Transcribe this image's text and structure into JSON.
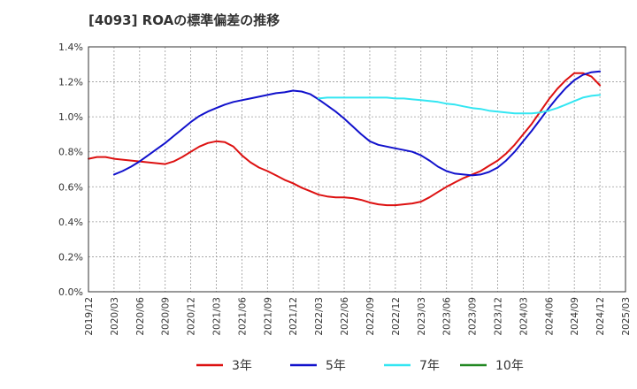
{
  "chart_data": {
    "type": "line",
    "title": "[4093]  ROAの標準偏差の推移",
    "xlabel": "",
    "ylabel": "",
    "ylim": [
      0,
      1.4
    ],
    "y_ticks": [
      "0.0%",
      "0.2%",
      "0.4%",
      "0.6%",
      "0.8%",
      "1.0%",
      "1.2%",
      "1.4%"
    ],
    "x_ticks": [
      "2019/12",
      "2020/03",
      "2020/06",
      "2020/09",
      "2020/12",
      "2021/03",
      "2021/06",
      "2021/09",
      "2021/12",
      "2022/03",
      "2022/06",
      "2022/09",
      "2022/12",
      "2023/03",
      "2023/06",
      "2023/09",
      "2023/12",
      "2024/03",
      "2024/06",
      "2024/09",
      "2024/12",
      "2025/03"
    ],
    "grid": true,
    "legend_position": "bottom",
    "series": [
      {
        "name": "3年",
        "color": "#dd1111",
        "points": [
          [
            "2019/12",
            0.76
          ],
          [
            "2020/01",
            0.77
          ],
          [
            "2020/02",
            0.77
          ],
          [
            "2020/03",
            0.76
          ],
          [
            "2020/04",
            0.755
          ],
          [
            "2020/05",
            0.75
          ],
          [
            "2020/06",
            0.745
          ],
          [
            "2020/07",
            0.74
          ],
          [
            "2020/08",
            0.735
          ],
          [
            "2020/09",
            0.73
          ],
          [
            "2020/10",
            0.745
          ],
          [
            "2020/11",
            0.77
          ],
          [
            "2020/12",
            0.8
          ],
          [
            "2021/01",
            0.83
          ],
          [
            "2021/02",
            0.85
          ],
          [
            "2021/03",
            0.86
          ],
          [
            "2021/04",
            0.855
          ],
          [
            "2021/05",
            0.83
          ],
          [
            "2021/06",
            0.78
          ],
          [
            "2021/07",
            0.74
          ],
          [
            "2021/08",
            0.71
          ],
          [
            "2021/09",
            0.69
          ],
          [
            "2021/10",
            0.665
          ],
          [
            "2021/11",
            0.64
          ],
          [
            "2021/12",
            0.62
          ],
          [
            "2022/01",
            0.595
          ],
          [
            "2022/02",
            0.575
          ],
          [
            "2022/03",
            0.555
          ],
          [
            "2022/04",
            0.545
          ],
          [
            "2022/05",
            0.54
          ],
          [
            "2022/06",
            0.54
          ],
          [
            "2022/07",
            0.535
          ],
          [
            "2022/08",
            0.525
          ],
          [
            "2022/09",
            0.51
          ],
          [
            "2022/10",
            0.5
          ],
          [
            "2022/11",
            0.495
          ],
          [
            "2022/12",
            0.495
          ],
          [
            "2023/01",
            0.5
          ],
          [
            "2023/02",
            0.505
          ],
          [
            "2023/03",
            0.515
          ],
          [
            "2023/04",
            0.54
          ],
          [
            "2023/05",
            0.57
          ],
          [
            "2023/06",
            0.6
          ],
          [
            "2023/07",
            0.625
          ],
          [
            "2023/08",
            0.65
          ],
          [
            "2023/09",
            0.67
          ],
          [
            "2023/10",
            0.69
          ],
          [
            "2023/11",
            0.72
          ],
          [
            "2023/12",
            0.75
          ],
          [
            "2024/01",
            0.79
          ],
          [
            "2024/02",
            0.84
          ],
          [
            "2024/03",
            0.9
          ],
          [
            "2024/04",
            0.96
          ],
          [
            "2024/05",
            1.03
          ],
          [
            "2024/06",
            1.1
          ],
          [
            "2024/07",
            1.16
          ],
          [
            "2024/08",
            1.21
          ],
          [
            "2024/09",
            1.25
          ],
          [
            "2024/10",
            1.25
          ],
          [
            "2024/11",
            1.23
          ],
          [
            "2024/12",
            1.18
          ]
        ]
      },
      {
        "name": "5年",
        "color": "#1111cc",
        "points": [
          [
            "2020/03",
            0.67
          ],
          [
            "2020/04",
            0.69
          ],
          [
            "2020/05",
            0.715
          ],
          [
            "2020/06",
            0.745
          ],
          [
            "2020/07",
            0.78
          ],
          [
            "2020/08",
            0.815
          ],
          [
            "2020/09",
            0.85
          ],
          [
            "2020/10",
            0.89
          ],
          [
            "2020/11",
            0.93
          ],
          [
            "2020/12",
            0.97
          ],
          [
            "2021/01",
            1.005
          ],
          [
            "2021/02",
            1.03
          ],
          [
            "2021/03",
            1.05
          ],
          [
            "2021/04",
            1.07
          ],
          [
            "2021/05",
            1.085
          ],
          [
            "2021/06",
            1.095
          ],
          [
            "2021/07",
            1.105
          ],
          [
            "2021/08",
            1.115
          ],
          [
            "2021/09",
            1.125
          ],
          [
            "2021/10",
            1.135
          ],
          [
            "2021/11",
            1.14
          ],
          [
            "2021/12",
            1.15
          ],
          [
            "2022/01",
            1.145
          ],
          [
            "2022/02",
            1.13
          ],
          [
            "2022/03",
            1.1
          ],
          [
            "2022/04",
            1.065
          ],
          [
            "2022/05",
            1.03
          ],
          [
            "2022/06",
            0.99
          ],
          [
            "2022/07",
            0.945
          ],
          [
            "2022/08",
            0.9
          ],
          [
            "2022/09",
            0.86
          ],
          [
            "2022/10",
            0.84
          ],
          [
            "2022/11",
            0.83
          ],
          [
            "2022/12",
            0.82
          ],
          [
            "2023/01",
            0.81
          ],
          [
            "2023/02",
            0.8
          ],
          [
            "2023/03",
            0.78
          ],
          [
            "2023/04",
            0.75
          ],
          [
            "2023/05",
            0.715
          ],
          [
            "2023/06",
            0.69
          ],
          [
            "2023/07",
            0.675
          ],
          [
            "2023/08",
            0.67
          ],
          [
            "2023/09",
            0.665
          ],
          [
            "2023/10",
            0.67
          ],
          [
            "2023/11",
            0.685
          ],
          [
            "2023/12",
            0.71
          ],
          [
            "2024/01",
            0.75
          ],
          [
            "2024/02",
            0.8
          ],
          [
            "2024/03",
            0.86
          ],
          [
            "2024/04",
            0.92
          ],
          [
            "2024/05",
            0.985
          ],
          [
            "2024/06",
            1.05
          ],
          [
            "2024/07",
            1.11
          ],
          [
            "2024/08",
            1.165
          ],
          [
            "2024/09",
            1.21
          ],
          [
            "2024/10",
            1.24
          ],
          [
            "2024/11",
            1.255
          ],
          [
            "2024/12",
            1.26
          ]
        ]
      },
      {
        "name": "7年",
        "color": "#33e6f2",
        "points": [
          [
            "2022/03",
            1.105
          ],
          [
            "2022/04",
            1.11
          ],
          [
            "2022/05",
            1.11
          ],
          [
            "2022/06",
            1.11
          ],
          [
            "2022/07",
            1.11
          ],
          [
            "2022/08",
            1.11
          ],
          [
            "2022/09",
            1.11
          ],
          [
            "2022/10",
            1.11
          ],
          [
            "2022/11",
            1.11
          ],
          [
            "2022/12",
            1.105
          ],
          [
            "2023/01",
            1.105
          ],
          [
            "2023/02",
            1.1
          ],
          [
            "2023/03",
            1.095
          ],
          [
            "2023/04",
            1.09
          ],
          [
            "2023/05",
            1.085
          ],
          [
            "2023/06",
            1.075
          ],
          [
            "2023/07",
            1.07
          ],
          [
            "2023/08",
            1.06
          ],
          [
            "2023/09",
            1.05
          ],
          [
            "2023/10",
            1.045
          ],
          [
            "2023/11",
            1.035
          ],
          [
            "2023/12",
            1.03
          ],
          [
            "2024/01",
            1.025
          ],
          [
            "2024/02",
            1.02
          ],
          [
            "2024/03",
            1.02
          ],
          [
            "2024/04",
            1.02
          ],
          [
            "2024/05",
            1.025
          ],
          [
            "2024/06",
            1.035
          ],
          [
            "2024/07",
            1.05
          ],
          [
            "2024/08",
            1.07
          ],
          [
            "2024/09",
            1.09
          ],
          [
            "2024/10",
            1.11
          ],
          [
            "2024/11",
            1.12
          ],
          [
            "2024/12",
            1.125
          ]
        ]
      },
      {
        "name": "10年",
        "color": "#228822",
        "points": []
      }
    ]
  }
}
